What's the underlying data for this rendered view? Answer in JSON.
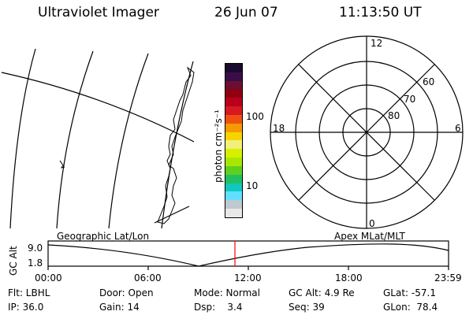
{
  "header": {
    "title": "Ultraviolet Imager",
    "date": "26 Jun 07",
    "time": "11:13:50 UT"
  },
  "colorbar": {
    "unit_label": "photon cm⁻²s⁻¹",
    "tick_100": "100",
    "tick_10": "10",
    "colors_top_to_bottom": [
      "#1a0a2e",
      "#3a0d4a",
      "#6a1030",
      "#900010",
      "#b8001a",
      "#d81820",
      "#ef5010",
      "#f59a00",
      "#f6d400",
      "#f0f07a",
      "#d8f000",
      "#a8e800",
      "#60d020",
      "#20c060",
      "#10c8c0",
      "#60e0ff",
      "#c0c8d0",
      "#e8e8e8"
    ]
  },
  "polar": {
    "label_12": "12",
    "label_18": "18",
    "label_6": "6",
    "label_0": "0",
    "label_60": "60",
    "label_70": "70",
    "label_80": "80"
  },
  "alt_plot": {
    "left_label": "Geographic Lat/Lon",
    "right_label": "Apex MLat/MLT",
    "axis_label": "GC Alt",
    "y_top": "9.0",
    "y_bottom": "1.8",
    "x_ticks": [
      "00:00",
      "06:00",
      "12:00",
      "18:00",
      "23:59"
    ],
    "marker_color": "#ff0000"
  },
  "status": {
    "filter": "Flt: LBHL",
    "ip": "IP: 36.0",
    "door": "Door: Open",
    "gain": "Gain: 14",
    "mode": "Mode: Normal",
    "dsp": "Dsp:    3.4",
    "gc_alt": "GC Alt: 4.9 Re",
    "seq": "Seq: 39",
    "glat": "GLat: -57.1",
    "glon": "GLon:  78.4"
  }
}
